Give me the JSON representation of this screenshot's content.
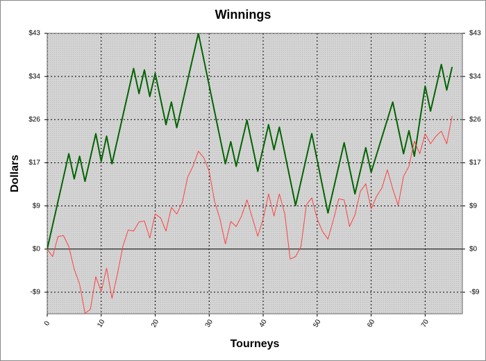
{
  "chart_data": {
    "type": "line",
    "title": "Winnings",
    "x_label": "Tourneys",
    "y_label": "Dollars",
    "xlim": [
      0,
      76.9
    ],
    "ylim": [
      -12.9,
      43
    ],
    "xticks": [
      0,
      10,
      20,
      30,
      40,
      50,
      60,
      70
    ],
    "yticks": [
      {
        "value": -8.6,
        "label": "-$9"
      },
      {
        "value": 0,
        "label": "$0"
      },
      {
        "value": 8.6,
        "label": "$9"
      },
      {
        "value": 17.2,
        "label": "$17"
      },
      {
        "value": 25.8,
        "label": "$26"
      },
      {
        "value": 34.4,
        "label": "$34"
      },
      {
        "value": 43,
        "label": "$43"
      }
    ],
    "grid": true,
    "series": [
      {
        "color": "#006400",
        "width": 2,
        "x": [
          0,
          4,
          5,
          6,
          7,
          9,
          10,
          11,
          12,
          16,
          17,
          18,
          19,
          20,
          22,
          23,
          24,
          28,
          33,
          34,
          35,
          37,
          39,
          41,
          42,
          43,
          46,
          49,
          52,
          55,
          57,
          59,
          60,
          64,
          66,
          67,
          68,
          70,
          71,
          73,
          74,
          75
        ],
        "values": [
          0,
          19,
          14,
          18.5,
          13.5,
          23,
          17.5,
          22.5,
          17,
          36,
          31,
          35.7,
          30.4,
          35,
          24.8,
          29.3,
          24.2,
          43,
          17,
          21.4,
          16.5,
          25.7,
          15.5,
          24.8,
          19.8,
          24.3,
          8.7,
          23,
          7.2,
          21.2,
          11,
          20.2,
          15.3,
          29.3,
          19,
          23.6,
          18.5,
          32.5,
          27.5,
          36.8,
          31.7,
          36.3
        ]
      },
      {
        "color": "#ff4040",
        "width": 1,
        "x": [
          0,
          1,
          2,
          3,
          4,
          5,
          6,
          7,
          8,
          9,
          10,
          11,
          12,
          13,
          14,
          15,
          16,
          17,
          18,
          19,
          20,
          21,
          22,
          23,
          24,
          25,
          26,
          27,
          28,
          29,
          30,
          31,
          32,
          33,
          34,
          35,
          36,
          37,
          38,
          39,
          40,
          41,
          42,
          43,
          44,
          45,
          46,
          47,
          48,
          49,
          50,
          51,
          52,
          53,
          54,
          55,
          56,
          57,
          58,
          59,
          60,
          61,
          62,
          63,
          64,
          65,
          66,
          67,
          68,
          69,
          70,
          71,
          72,
          73,
          74,
          75
        ],
        "values": [
          0,
          -1.5,
          2.5,
          2.7,
          0.5,
          -4,
          -7,
          -12.8,
          -12,
          -5.5,
          -8.5,
          -3.8,
          -9.8,
          -5,
          0.5,
          3.8,
          3.6,
          5.4,
          5.6,
          2.2,
          7,
          6.2,
          3.6,
          8.3,
          7,
          9.2,
          14.3,
          16.5,
          19.5,
          18.2,
          15.5,
          9.5,
          6,
          1,
          5.5,
          4.5,
          6.6,
          9.8,
          6.2,
          2.6,
          6,
          11,
          6.6,
          11,
          7,
          -2,
          -1.5,
          0.5,
          8.8,
          10.2,
          6,
          3.5,
          2,
          5.8,
          10,
          9.8,
          4.5,
          6.8,
          11.5,
          13,
          8,
          10.5,
          12.2,
          15.8,
          12,
          8.7,
          14.5,
          16.5,
          21.5,
          19,
          23,
          21,
          22.5,
          23.5,
          21,
          26.5
        ]
      }
    ]
  }
}
